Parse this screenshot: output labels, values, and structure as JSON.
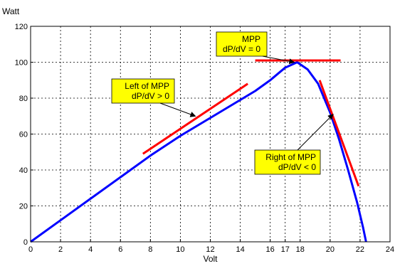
{
  "chart_data": {
    "type": "line",
    "title": "",
    "xlabel": "Volt",
    "ylabel": "Watt",
    "xlim": [
      0,
      24
    ],
    "ylim": [
      0,
      120
    ],
    "x_ticks": [
      "0",
      "2",
      "4",
      "6",
      "8",
      "10",
      "12",
      "14",
      "16",
      "17",
      "18",
      "20",
      "22",
      "24"
    ],
    "x_tick_values": [
      0,
      2,
      4,
      6,
      8,
      10,
      12,
      14,
      16,
      17,
      18,
      20,
      22,
      24
    ],
    "y_ticks": [
      "0",
      "20",
      "40",
      "60",
      "80",
      "100",
      "120"
    ],
    "y_tick_values": [
      0,
      20,
      40,
      60,
      80,
      100,
      120
    ],
    "grid": true,
    "series": [
      {
        "color": "#0000ff",
        "x": [
          0,
          2,
          4,
          6,
          8,
          10,
          12,
          14,
          15,
          16,
          17,
          17.8,
          18.5,
          19.2,
          20,
          20.6,
          21.2,
          21.8,
          22.2,
          22.4
        ],
        "y": [
          0,
          12,
          24,
          36,
          48,
          59,
          69,
          79,
          84,
          90,
          97,
          100,
          96,
          88,
          72,
          57,
          40,
          22,
          8,
          0
        ]
      }
    ],
    "tangent_lines": [
      {
        "color": "#ff0000",
        "x": [
          7.5,
          14.5
        ],
        "y": [
          49,
          88
        ]
      },
      {
        "color": "#ff0000",
        "x": [
          15,
          20.7
        ],
        "y": [
          101,
          101
        ]
      },
      {
        "color": "#ff0000",
        "x": [
          19.3,
          21.9
        ],
        "y": [
          90,
          31
        ]
      }
    ],
    "annotations": [
      {
        "id": "mpp",
        "lines": [
          "MPP",
          "dP/dV = 0"
        ],
        "arrow_to": [
          17.6,
          100
        ]
      },
      {
        "id": "left",
        "lines": [
          "Left of MPP",
          "dP/dV > 0"
        ],
        "arrow_to": [
          11,
          70
        ]
      },
      {
        "id": "right",
        "lines": [
          "Right of MPP",
          "dP/dV < 0"
        ],
        "arrow_to": [
          20.2,
          71
        ]
      }
    ],
    "annotation_fill": "#ffff00"
  }
}
